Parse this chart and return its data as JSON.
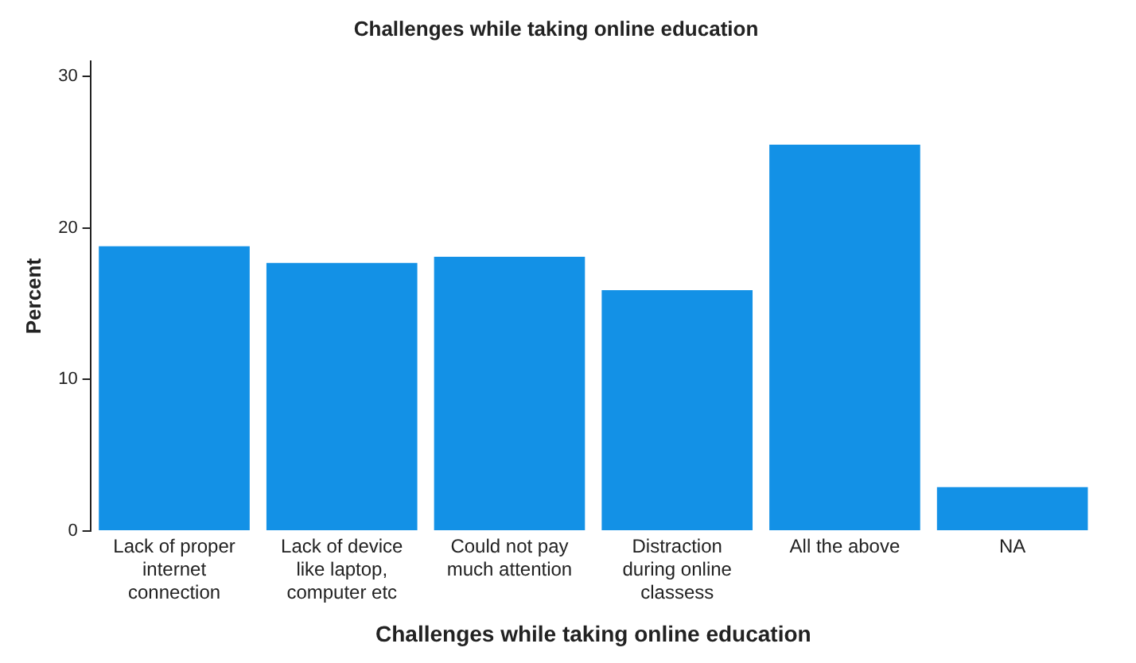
{
  "chart_data": {
    "type": "bar",
    "title": "Challenges while taking online education",
    "xlabel": "Challenges while taking online education",
    "ylabel": "Percent",
    "categories": [
      "Lack of proper internet connection",
      "Lack of device like laptop, computer etc",
      "Could not pay much attention",
      "Distraction during online classess",
      "All the above",
      "NA"
    ],
    "values": [
      18.8,
      17.7,
      18.1,
      15.9,
      25.5,
      2.9
    ],
    "color": "#1391e6",
    "ylim": [
      0,
      31
    ],
    "yticks": [
      0,
      10,
      20,
      30
    ],
    "grid": false,
    "legend": false
  }
}
